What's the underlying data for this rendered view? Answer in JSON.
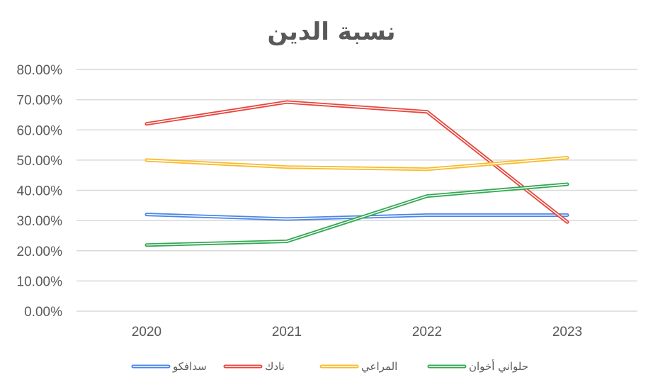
{
  "chart_data": {
    "type": "line",
    "title": "نسبة الدين",
    "categories": [
      "2020",
      "2021",
      "2022",
      "2023"
    ],
    "y_tick_labels": [
      "0.00%",
      "10.00%",
      "20.00%",
      "30.00%",
      "40.00%",
      "50.00%",
      "60.00%",
      "70.00%",
      "80.00%"
    ],
    "ylim": [
      0,
      0.8
    ],
    "grid": true,
    "legend_position": "bottom",
    "series": [
      {
        "name": "سدافكو",
        "color": "#4a86e8",
        "values": [
          0.32,
          0.305,
          0.318,
          0.318
        ]
      },
      {
        "name": "نادك",
        "color": "#e8453c",
        "values": [
          0.62,
          0.692,
          0.66,
          0.295
        ]
      },
      {
        "name": "المراعي",
        "color": "#f9bb2d",
        "values": [
          0.5,
          0.477,
          0.47,
          0.508
        ]
      },
      {
        "name": "حلواني أخوان",
        "color": "#34a853",
        "values": [
          0.219,
          0.231,
          0.381,
          0.42
        ]
      }
    ]
  }
}
